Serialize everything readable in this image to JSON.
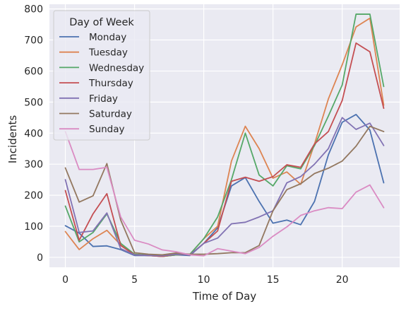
{
  "chart_data": {
    "type": "line",
    "title": "",
    "xlabel": "Time of Day",
    "ylabel": "Incidents",
    "xlim": [
      -1.15,
      24.15
    ],
    "ylim": [
      -32,
      815
    ],
    "xticks": [
      0,
      5,
      10,
      15,
      20
    ],
    "yticks": [
      0,
      100,
      200,
      300,
      400,
      500,
      600,
      700,
      800
    ],
    "grid": true,
    "background": "#eaeaf2",
    "legend": {
      "title": "Day of Week",
      "placement": "top-left"
    },
    "x": [
      0,
      1,
      2,
      3,
      4,
      5,
      6,
      7,
      8,
      9,
      10,
      11,
      12,
      13,
      14,
      15,
      16,
      17,
      18,
      19,
      20,
      21,
      22,
      23
    ],
    "series": [
      {
        "name": "Monday",
        "color": "#4c72b0",
        "values": [
          102,
          78,
          35,
          37,
          25,
          6,
          6,
          3,
          8,
          6,
          45,
          95,
          230,
          257,
          180,
          110,
          120,
          105,
          180,
          330,
          435,
          460,
          410,
          240
        ]
      },
      {
        "name": "Tuesday",
        "color": "#dd8452",
        "values": [
          83,
          25,
          60,
          87,
          40,
          10,
          6,
          3,
          8,
          10,
          60,
          100,
          310,
          422,
          350,
          255,
          275,
          235,
          365,
          510,
          620,
          742,
          770,
          490
        ]
      },
      {
        "name": "Wednesday",
        "color": "#55a868",
        "values": [
          165,
          50,
          80,
          140,
          45,
          10,
          7,
          3,
          8,
          10,
          60,
          130,
          250,
          400,
          265,
          230,
          295,
          285,
          360,
          455,
          555,
          783,
          783,
          550
        ]
      },
      {
        "name": "Thursday",
        "color": "#c44e52",
        "values": [
          215,
          55,
          140,
          205,
          38,
          8,
          6,
          3,
          10,
          8,
          45,
          85,
          245,
          258,
          245,
          260,
          298,
          290,
          365,
          405,
          505,
          690,
          662,
          480
        ]
      },
      {
        "name": "Friday",
        "color": "#8172b3",
        "values": [
          250,
          80,
          85,
          143,
          28,
          8,
          6,
          5,
          10,
          8,
          45,
          62,
          108,
          113,
          130,
          150,
          240,
          260,
          300,
          350,
          450,
          412,
          432,
          360
        ]
      },
      {
        "name": "Saturday",
        "color": "#937860",
        "values": [
          288,
          178,
          198,
          302,
          120,
          15,
          10,
          8,
          14,
          10,
          10,
          12,
          15,
          15,
          38,
          150,
          218,
          237,
          270,
          287,
          310,
          358,
          422,
          405
        ]
      },
      {
        "name": "Sunday",
        "color": "#da8bc3",
        "values": [
          405,
          283,
          283,
          290,
          130,
          55,
          43,
          24,
          18,
          8,
          5,
          28,
          20,
          12,
          32,
          68,
          98,
          135,
          150,
          160,
          157,
          210,
          233,
          160
        ]
      }
    ]
  }
}
